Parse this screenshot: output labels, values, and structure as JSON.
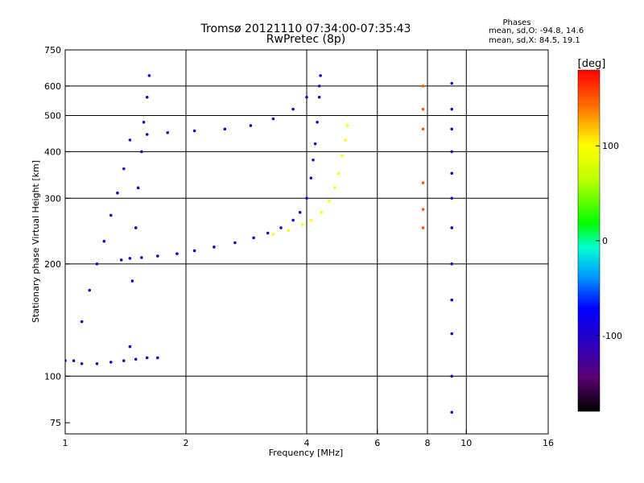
{
  "chart_data": {
    "type": "scatter",
    "title": "Tromsø 20121110 07:34:00-07:35:43",
    "subtitle": "RwPretec (8p)",
    "xlabel": "Frequency [MHz]",
    "ylabel": "Stationary phase Virtual Height [km]",
    "x_scale": "log",
    "y_scale": "log",
    "xlim": [
      1,
      16
    ],
    "ylim": [
      70,
      750
    ],
    "x_ticks": [
      "1",
      "2",
      "4",
      "6",
      "8",
      "10",
      "16"
    ],
    "y_ticks": [
      "75",
      "100",
      "200",
      "300",
      "400",
      "500",
      "600",
      "750"
    ],
    "x_gridlines": [
      2,
      4,
      6,
      8,
      10
    ],
    "y_gridlines": [
      100,
      200,
      300,
      400,
      500,
      600
    ],
    "grid": true,
    "stats": {
      "heading": "Phases",
      "o_line": "mean, sd,O: -94.8, 14.6",
      "x_line": "mean, sd,X:  84.5, 19.1"
    },
    "colorbar": {
      "label": "[deg]",
      "range": [
        -180,
        180
      ],
      "ticks": [
        "100",
        "0",
        "-100"
      ],
      "tick_values": [
        100,
        0,
        -100
      ],
      "colormap": "rainbow"
    },
    "traces": [
      {
        "name": "O-mode F-trace",
        "phase": -100,
        "points": [
          [
            1.38,
            205
          ],
          [
            1.45,
            207
          ],
          [
            1.55,
            208
          ],
          [
            1.7,
            210
          ],
          [
            1.9,
            213
          ],
          [
            2.1,
            217
          ],
          [
            2.35,
            222
          ],
          [
            2.65,
            228
          ],
          [
            2.95,
            235
          ],
          [
            3.2,
            242
          ],
          [
            3.45,
            250
          ],
          [
            3.7,
            262
          ],
          [
            3.85,
            275
          ],
          [
            4.0,
            300
          ],
          [
            4.1,
            340
          ],
          [
            4.15,
            380
          ],
          [
            4.2,
            420
          ],
          [
            4.25,
            480
          ],
          [
            4.3,
            560
          ],
          [
            4.33,
            640
          ]
        ]
      },
      {
        "name": "X-mode F-trace",
        "phase": 100,
        "points": [
          [
            3.3,
            240
          ],
          [
            3.6,
            246
          ],
          [
            3.9,
            255
          ],
          [
            4.1,
            262
          ],
          [
            4.35,
            275
          ],
          [
            4.55,
            295
          ],
          [
            4.7,
            320
          ],
          [
            4.8,
            350
          ],
          [
            4.9,
            390
          ],
          [
            5.0,
            430
          ],
          [
            5.05,
            470
          ]
        ]
      },
      {
        "name": "O-mode upper trace",
        "phase": -100,
        "points": [
          [
            1.45,
            430
          ],
          [
            1.6,
            445
          ],
          [
            1.8,
            450
          ],
          [
            2.1,
            455
          ],
          [
            2.5,
            460
          ],
          [
            2.9,
            470
          ],
          [
            3.3,
            490
          ],
          [
            3.7,
            520
          ],
          [
            4.0,
            560
          ],
          [
            4.3,
            600
          ]
        ]
      },
      {
        "name": "O-mode spread near 1.45 MHz",
        "phase": -100,
        "points": [
          [
            1.45,
            120
          ],
          [
            1.47,
            180
          ],
          [
            1.5,
            250
          ],
          [
            1.52,
            320
          ],
          [
            1.55,
            400
          ],
          [
            1.57,
            480
          ],
          [
            1.6,
            560
          ],
          [
            1.62,
            640
          ]
        ]
      },
      {
        "name": "O-mode low-frequency spread",
        "phase": -100,
        "points": [
          [
            1.05,
            110
          ],
          [
            1.1,
            140
          ],
          [
            1.15,
            170
          ],
          [
            1.2,
            200
          ],
          [
            1.25,
            230
          ],
          [
            1.3,
            270
          ],
          [
            1.35,
            310
          ],
          [
            1.4,
            360
          ]
        ]
      },
      {
        "name": "O-mode E-layer echoes",
        "phase": -100,
        "points": [
          [
            1.0,
            110
          ],
          [
            1.1,
            108
          ],
          [
            1.2,
            108
          ],
          [
            1.3,
            109
          ],
          [
            1.4,
            110
          ],
          [
            1.5,
            111
          ],
          [
            1.6,
            112
          ],
          [
            1.7,
            112
          ]
        ]
      },
      {
        "name": "Vertical stripe at 9.2 MHz",
        "phase": -100,
        "points": [
          [
            9.2,
            80
          ],
          [
            9.2,
            100
          ],
          [
            9.2,
            130
          ],
          [
            9.2,
            160
          ],
          [
            9.2,
            200
          ],
          [
            9.2,
            250
          ],
          [
            9.2,
            300
          ],
          [
            9.2,
            350
          ],
          [
            9.2,
            400
          ],
          [
            9.2,
            460
          ],
          [
            9.2,
            520
          ],
          [
            9.2,
            610
          ]
        ]
      },
      {
        "name": "Sparse X-mode stripe at 7.8 MHz",
        "phase": 150,
        "points": [
          [
            7.8,
            600
          ],
          [
            7.8,
            520
          ],
          [
            7.8,
            460
          ],
          [
            7.8,
            330
          ],
          [
            7.8,
            280
          ],
          [
            7.8,
            250
          ]
        ]
      }
    ]
  }
}
